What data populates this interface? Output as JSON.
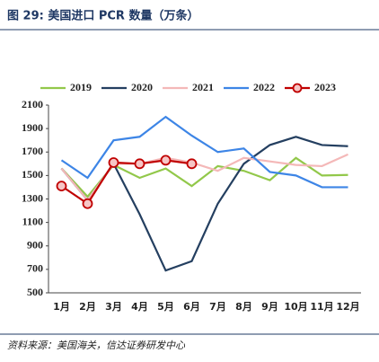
{
  "chart_data": {
    "type": "line",
    "title": "图 29: 美国进口 PCR 数量（万条）",
    "source": "资料来源：美国海关，信达证券研发中心",
    "categories": [
      "1月",
      "2月",
      "3月",
      "4月",
      "5月",
      "6月",
      "7月",
      "8月",
      "9月",
      "10月",
      "11月",
      "12月"
    ],
    "series": [
      {
        "name": "2019",
        "color": "#92c84a",
        "values": [
          1560,
          1320,
          1590,
          1480,
          1560,
          1410,
          1580,
          1540,
          1460,
          1650,
          1500,
          1505
        ]
      },
      {
        "name": "2020",
        "color": "#243f60",
        "values": [
          1560,
          1290,
          1600,
          1170,
          690,
          770,
          1260,
          1600,
          1760,
          1830,
          1760,
          1750
        ]
      },
      {
        "name": "2021",
        "color": "#f4b8b8",
        "values": [
          1560,
          1290,
          1600,
          1600,
          1650,
          1610,
          1540,
          1650,
          1620,
          1590,
          1580,
          1680
        ]
      },
      {
        "name": "2022",
        "color": "#3d85e6",
        "values": [
          1630,
          1480,
          1800,
          1830,
          2000,
          1840,
          1700,
          1730,
          1530,
          1500,
          1400,
          1400
        ]
      },
      {
        "name": "2023",
        "color": "#c00000",
        "marker": "circle",
        "values": [
          1410,
          1260,
          1610,
          1600,
          1630,
          1600,
          null,
          null,
          null,
          null,
          null,
          null
        ]
      }
    ],
    "ylim": [
      500,
      2100
    ],
    "yticks": [
      500,
      700,
      900,
      1100,
      1300,
      1500,
      1700,
      1900,
      2100
    ],
    "legend": "top"
  }
}
